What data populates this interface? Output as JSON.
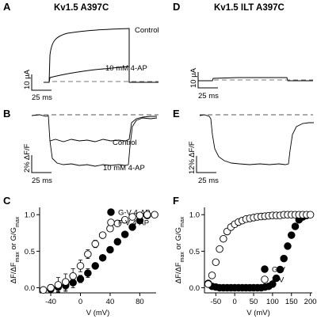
{
  "figure": {
    "panels": {
      "A": {
        "letter": "A",
        "title": "Kv1.5 A397C",
        "scale_y": "10 µA",
        "scale_x": "25 ms",
        "labels": [
          "Control",
          "10 mM 4-AP"
        ]
      },
      "B": {
        "letter": "B",
        "scale_y": "2% ΔF/F",
        "scale_x": "25 ms",
        "labels": [
          "Control",
          "10 mM 4-AP"
        ]
      },
      "D": {
        "letter": "D",
        "title": "Kv1.5 ILT A397C",
        "scale_y": "10 µA",
        "scale_x": "25 ms"
      },
      "E": {
        "letter": "E",
        "scale_y": "12% ΔF/F",
        "scale_x": "25 ms"
      },
      "C": {
        "letter": "C"
      },
      "F": {
        "letter": "F"
      }
    }
  },
  "chart_data": [
    {
      "panel": "C",
      "type": "scatter",
      "xlabel": "V (mV)",
      "ylabel": "ΔF/ΔF_max or G/G_max",
      "ylabel_main": "ΔF/ΔF",
      "ylabel_sub1": "max",
      "ylabel_mid": " or G/G",
      "ylabel_sub2": "max",
      "xlim": [
        -55,
        102
      ],
      "ylim": [
        -0.07,
        1.1
      ],
      "xticks": [
        -40,
        0,
        40,
        80
      ],
      "yticks": [
        0.0,
        0.5,
        1.0
      ],
      "ytick_labels": [
        "0.0",
        "0.5",
        "1.0"
      ],
      "legend_position": "top-right",
      "series": [
        {
          "name": "G-V 4-AP",
          "marker": "filled-circle",
          "x": [
            -40,
            -30,
            -20,
            -10,
            0,
            10,
            20,
            30,
            40,
            50,
            60,
            70,
            80,
            90
          ],
          "y": [
            -0.02,
            0.01,
            0.03,
            0.07,
            0.12,
            0.2,
            0.3,
            0.41,
            0.52,
            0.63,
            0.73,
            0.83,
            0.92,
            0.99
          ],
          "err": [
            0.02,
            0.06,
            0.08,
            0.07,
            0.05,
            0.06,
            0.04,
            0.03,
            0.03,
            0.02,
            0.02,
            0.02,
            0.01,
            0.01
          ]
        },
        {
          "name": "F-V 4-AP",
          "marker": "open-circle",
          "x": [
            -50,
            -40,
            -30,
            -20,
            -10,
            0,
            10,
            20,
            30,
            40,
            50,
            60,
            70,
            80,
            90,
            100
          ],
          "y": [
            -0.03,
            0.0,
            0.04,
            0.08,
            0.16,
            0.3,
            0.46,
            0.6,
            0.72,
            0.81,
            0.88,
            0.93,
            0.97,
            0.99,
            1.0,
            1.0
          ],
          "err": [
            0.0,
            0.03,
            0.1,
            0.11,
            0.1,
            0.08,
            0.06,
            0.05,
            0.04,
            0.03,
            0.02,
            0.02,
            0.01,
            0.01,
            0.0,
            0.0
          ]
        }
      ]
    },
    {
      "panel": "F",
      "type": "scatter",
      "xlabel": "V (mV)",
      "ylabel": "ΔF/ΔF_max or G/G_max",
      "ylabel_main": "ΔF/ΔF",
      "ylabel_sub1": "max",
      "ylabel_mid": " or G/G",
      "ylabel_sub2": "max",
      "xlim": [
        -80,
        205
      ],
      "ylim": [
        -0.07,
        1.1
      ],
      "xticks": [
        -50,
        0,
        50,
        100,
        150,
        200
      ],
      "yticks": [
        0.0,
        0.5,
        1.0
      ],
      "ytick_labels": [
        "0.0",
        "0.5",
        "1.0"
      ],
      "legend_position": "lower-right",
      "series": [
        {
          "name": "G-V",
          "marker": "filled-circle",
          "x": [
            -70,
            -60,
            -50,
            -40,
            -30,
            -20,
            -10,
            0,
            10,
            20,
            30,
            40,
            50,
            60,
            70,
            80,
            90,
            100,
            110,
            120,
            130,
            140,
            150,
            160,
            170,
            180,
            190
          ],
          "y": [
            0.06,
            0.02,
            0.01,
            0.0,
            0.0,
            0.0,
            0.0,
            0.0,
            0.0,
            0.0,
            0.0,
            0.0,
            0.0,
            0.0,
            0.0,
            0.01,
            0.02,
            0.05,
            0.13,
            0.25,
            0.4,
            0.57,
            0.72,
            0.84,
            0.93,
            0.97,
            0.99
          ]
        },
        {
          "name": "F-V",
          "marker": "open-circle",
          "x": [
            -70,
            -60,
            -50,
            -40,
            -30,
            -20,
            -10,
            0,
            10,
            20,
            30,
            40,
            50,
            60,
            70,
            80,
            90,
            100,
            110,
            120,
            130,
            140,
            150,
            160,
            170,
            180,
            190,
            200
          ],
          "y": [
            0.05,
            0.17,
            0.35,
            0.53,
            0.67,
            0.77,
            0.83,
            0.87,
            0.9,
            0.92,
            0.94,
            0.95,
            0.96,
            0.97,
            0.975,
            0.98,
            0.985,
            0.99,
            0.99,
            0.99,
            1.0,
            1.0,
            1.0,
            1.0,
            1.0,
            1.0,
            1.0,
            1.0
          ]
        }
      ]
    }
  ]
}
